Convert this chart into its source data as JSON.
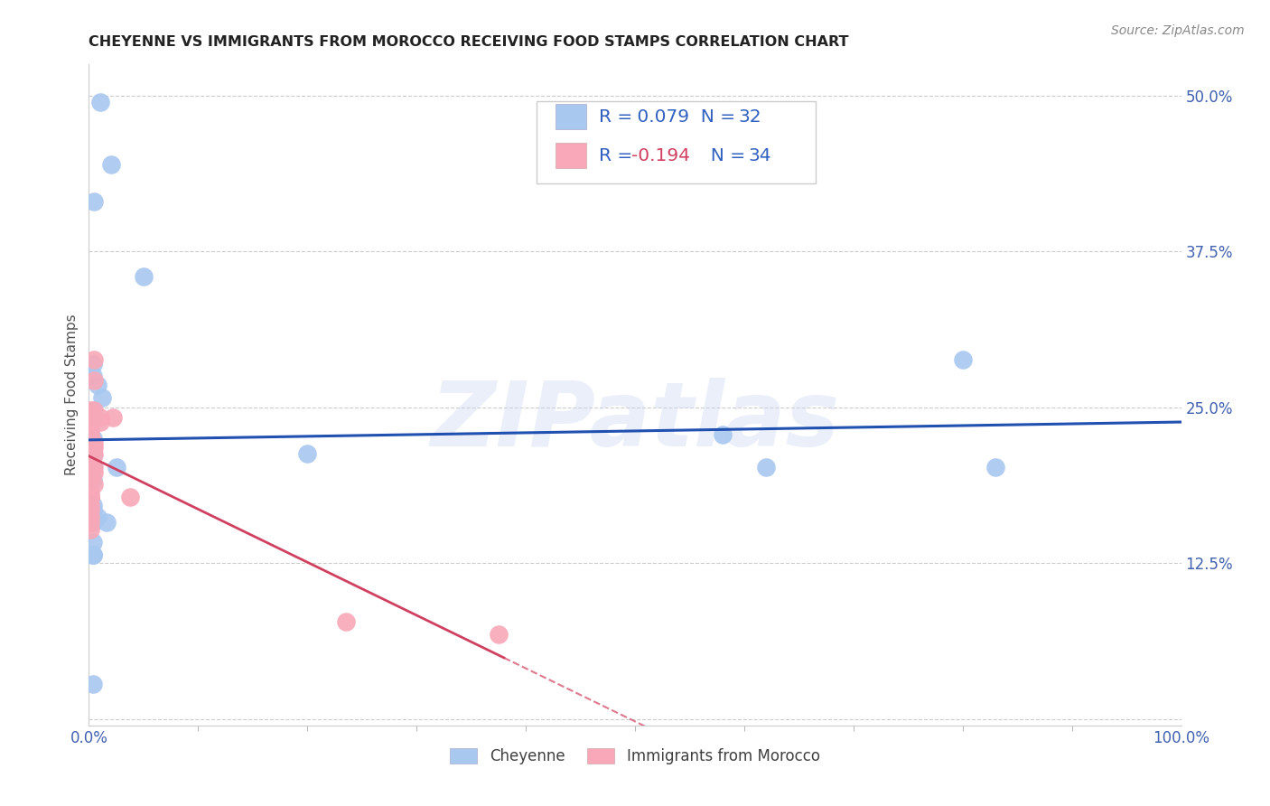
{
  "title": "CHEYENNE VS IMMIGRANTS FROM MOROCCO RECEIVING FOOD STAMPS CORRELATION CHART",
  "source": "Source: ZipAtlas.com",
  "ylabel": "Receiving Food Stamps",
  "xlim": [
    0.0,
    1.0
  ],
  "ylim": [
    -0.005,
    0.525
  ],
  "yticks": [
    0.0,
    0.125,
    0.25,
    0.375,
    0.5
  ],
  "ytick_labels": [
    "",
    "12.5%",
    "25.0%",
    "37.5%",
    "50.0%"
  ],
  "xtick_labels_shown": [
    "0.0%",
    "100.0%"
  ],
  "xtick_positions_shown": [
    0.0,
    1.0
  ],
  "xtick_minor": [
    0.1,
    0.2,
    0.3,
    0.4,
    0.5,
    0.6,
    0.7,
    0.8,
    0.9
  ],
  "cheyenne_x": [
    0.01,
    0.02,
    0.005,
    0.05,
    0.004,
    0.004,
    0.008,
    0.012,
    0.004,
    0.004,
    0.004,
    0.004,
    0.004,
    0.004,
    0.004,
    0.2,
    0.004,
    0.004,
    0.008,
    0.016,
    0.025,
    0.004,
    0.004,
    0.58,
    0.62,
    0.004,
    0.8,
    0.83,
    0.004,
    0.004,
    0.004,
    0.004
  ],
  "cheyenne_y": [
    0.495,
    0.445,
    0.415,
    0.355,
    0.285,
    0.275,
    0.268,
    0.258,
    0.248,
    0.243,
    0.225,
    0.218,
    0.212,
    0.202,
    0.192,
    0.213,
    0.172,
    0.168,
    0.162,
    0.158,
    0.202,
    0.158,
    0.158,
    0.228,
    0.202,
    0.142,
    0.288,
    0.202,
    0.132,
    0.132,
    0.028,
    0.132
  ],
  "morocco_x": [
    0.001,
    0.001,
    0.001,
    0.001,
    0.001,
    0.001,
    0.001,
    0.001,
    0.001,
    0.001,
    0.001,
    0.001,
    0.001,
    0.001,
    0.001,
    0.001,
    0.001,
    0.001,
    0.001,
    0.005,
    0.005,
    0.005,
    0.005,
    0.005,
    0.005,
    0.005,
    0.005,
    0.005,
    0.01,
    0.01,
    0.022,
    0.038,
    0.235,
    0.375
  ],
  "morocco_y": [
    0.248,
    0.238,
    0.238,
    0.232,
    0.228,
    0.222,
    0.218,
    0.212,
    0.202,
    0.192,
    0.182,
    0.178,
    0.178,
    0.178,
    0.172,
    0.168,
    0.162,
    0.158,
    0.152,
    0.288,
    0.272,
    0.248,
    0.222,
    0.218,
    0.212,
    0.202,
    0.198,
    0.188,
    0.242,
    0.238,
    0.242,
    0.178,
    0.078,
    0.068
  ],
  "cheyenne_R": 0.079,
  "cheyenne_N": 32,
  "morocco_R": -0.194,
  "morocco_N": 34,
  "blue_color": "#a8c8f0",
  "pink_color": "#f8a8b8",
  "blue_line_color": "#2050b0",
  "pink_line_color": "#d04060",
  "watermark": "ZIPatlas",
  "title_fontsize": 11.5,
  "axis_label_fontsize": 11,
  "tick_fontsize": 12,
  "source_fontsize": 10,
  "background_color": "#ffffff",
  "grid_color": "#cccccc",
  "tick_color": "#4060b0",
  "ylabel_color": "#505050"
}
